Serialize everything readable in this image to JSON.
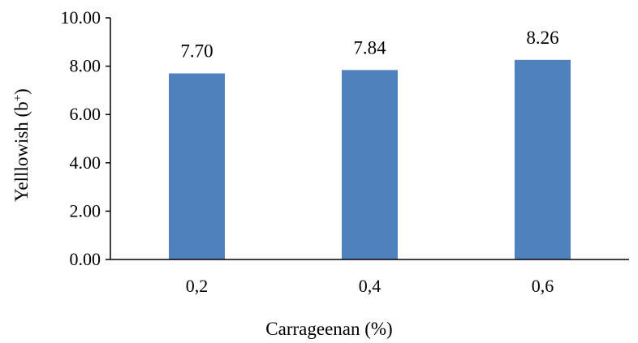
{
  "chart_data": {
    "type": "bar",
    "title": "",
    "xlabel": "Carrageenan (%)",
    "ylabel_base": "Yelllowish (b",
    "ylabel_sup": "+",
    "ylabel_end": ")",
    "categories": [
      "0,2",
      "0,4",
      "0,6"
    ],
    "values": [
      7.7,
      7.84,
      8.26
    ],
    "data_labels": [
      "7.70",
      "7.84",
      "8.26"
    ],
    "ylim": [
      0,
      10
    ],
    "y_ticks": [
      "0.00",
      "2.00",
      "4.00",
      "6.00",
      "8.00",
      "10.00"
    ],
    "bar_color": "#4f81bd",
    "grid": false,
    "legend": "none"
  }
}
